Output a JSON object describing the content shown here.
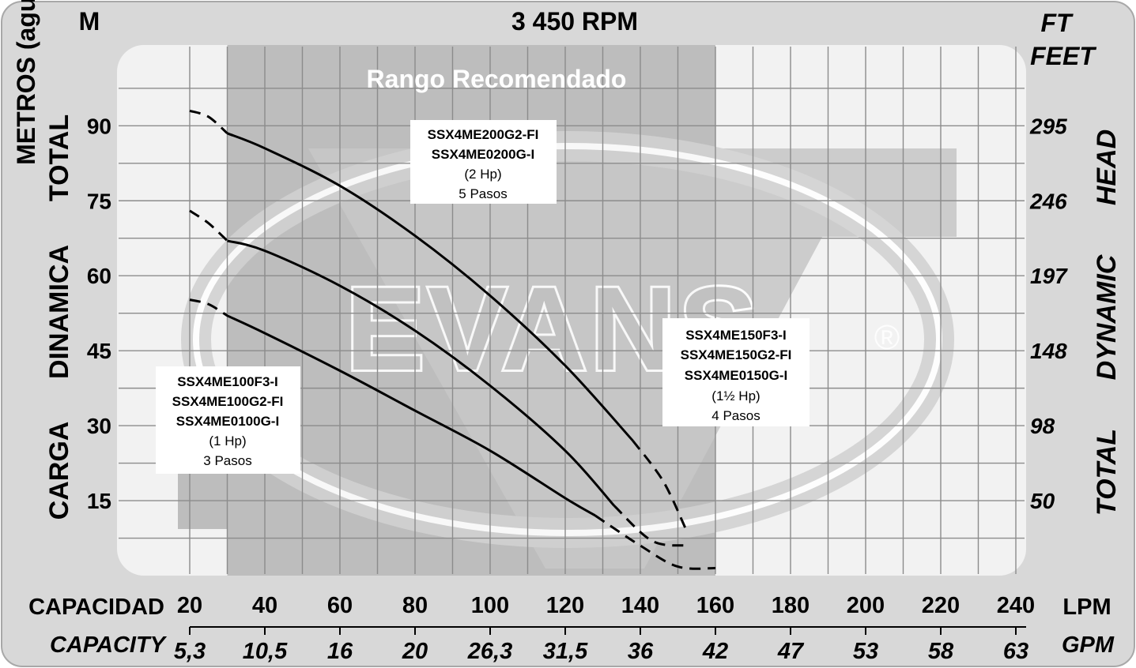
{
  "chart_data": {
    "type": "line",
    "title": "3 450 RPM",
    "watermark": "EVANS",
    "watermark_mark": "®",
    "recommended_range": {
      "label": "Rango Recomendado",
      "x_range": [
        30,
        160
      ]
    },
    "left_axis": {
      "unit": "M",
      "title_vertical": "METROS (agua)",
      "label_words": [
        "CARGA",
        "DINAMICA",
        "TOTAL"
      ],
      "ticks": [
        15,
        30,
        45,
        60,
        75,
        90
      ],
      "ylim": [
        0,
        105
      ]
    },
    "right_axis": {
      "unit_line1": "FT",
      "unit_line2": "FEET",
      "label_words": [
        "TOTAL",
        "DYNAMIC",
        "HEAD"
      ],
      "ticks": [
        "50",
        "98",
        "148",
        "197",
        "246",
        "295"
      ],
      "tick_positions_m": [
        15,
        30,
        45,
        60,
        75,
        90
      ]
    },
    "x_axis": {
      "label": "CAPACIDAD",
      "unit": "LPM",
      "ticks": [
        20,
        40,
        60,
        80,
        100,
        120,
        140,
        160,
        180,
        200,
        220,
        240
      ],
      "xlim": [
        18,
        244
      ]
    },
    "x_axis2": {
      "label": "CAPACITY",
      "unit": "GPM",
      "ticks": [
        "5,3",
        "10,5",
        "16",
        "20",
        "26,3",
        "31,5",
        "36",
        "42",
        "47",
        "53",
        "58",
        "63"
      ]
    },
    "colors": {
      "panel": "#d8d8d8",
      "plot": "#f2f2f2",
      "shade": "#bdbdbd",
      "grid": "#8c8c8c",
      "curve": "#000000"
    },
    "series": [
      {
        "labels": [
          "SSX4ME100F3-I",
          "SSX4ME100G2-FI",
          "SSX4ME0100G-I"
        ],
        "power": "(1 Hp)",
        "stages": "3 Pasos",
        "solid": [
          [
            30,
            52
          ],
          [
            40,
            48.5
          ],
          [
            60,
            41
          ],
          [
            80,
            33
          ],
          [
            100,
            25
          ],
          [
            120,
            15.5
          ],
          [
            128,
            12
          ]
        ],
        "dashed_start": [
          [
            20,
            55.2
          ],
          [
            25,
            54.3
          ],
          [
            30,
            52
          ]
        ],
        "dashed_end": [
          [
            128,
            12
          ],
          [
            140,
            6
          ],
          [
            150,
            1.8
          ],
          [
            160,
            1.5
          ]
        ]
      },
      {
        "labels": [
          "SSX4ME150F3-I",
          "SSX4ME150G2-FI",
          "SSX4ME0150G-I"
        ],
        "power": "(1½ Hp)",
        "stages": "4 Pasos",
        "solid": [
          [
            30,
            67
          ],
          [
            40,
            65
          ],
          [
            60,
            58
          ],
          [
            80,
            49
          ],
          [
            100,
            38
          ],
          [
            120,
            25
          ],
          [
            133,
            14
          ]
        ],
        "dashed_start": [
          [
            20,
            73
          ],
          [
            25,
            70.5
          ],
          [
            30,
            67
          ]
        ],
        "dashed_end": [
          [
            133,
            14
          ],
          [
            143,
            7
          ],
          [
            152,
            6
          ]
        ]
      },
      {
        "labels": [
          "SSX4ME200G2-FI",
          "SSX4ME0200G-I"
        ],
        "power": "(2 Hp)",
        "stages": "5 Pasos",
        "solid": [
          [
            30,
            88.5
          ],
          [
            40,
            85.5
          ],
          [
            60,
            78
          ],
          [
            80,
            68
          ],
          [
            100,
            56
          ],
          [
            120,
            42
          ],
          [
            138,
            27
          ]
        ],
        "dashed_start": [
          [
            20,
            93
          ],
          [
            25,
            91.8
          ],
          [
            30,
            88.5
          ]
        ],
        "dashed_end": [
          [
            138,
            27
          ],
          [
            146,
            19
          ],
          [
            152,
            9.5
          ]
        ]
      }
    ]
  }
}
